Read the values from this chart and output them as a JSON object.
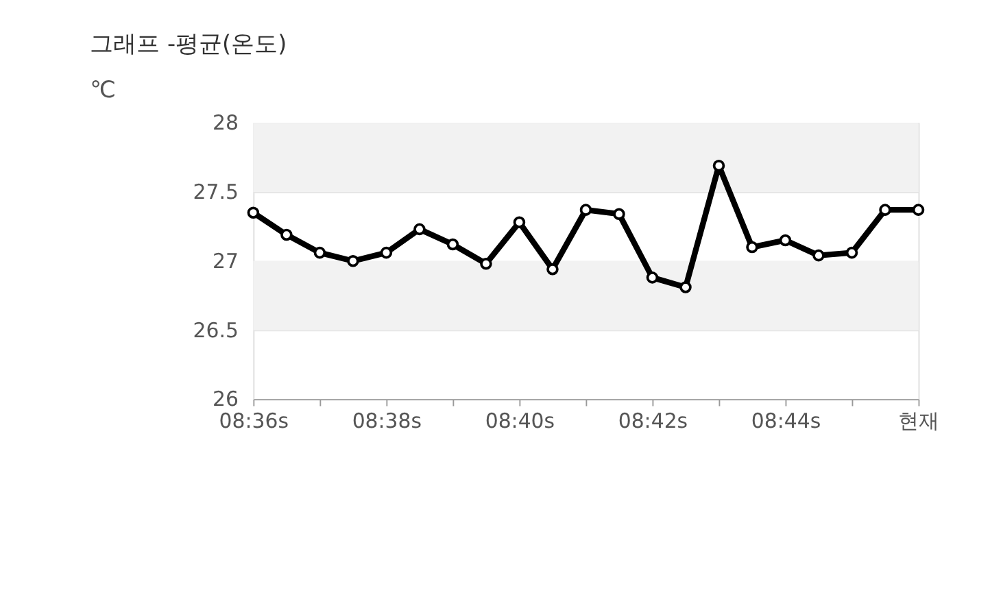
{
  "chart_data": {
    "type": "line",
    "title": "그래프 -평균(온도)",
    "ylabel": "℃",
    "categories": [
      "08:36s",
      null,
      null,
      null,
      "08:38s",
      null,
      null,
      null,
      "08:40s",
      null,
      null,
      null,
      "08:42s",
      null,
      null,
      null,
      "08:44s",
      null,
      null,
      null,
      "현재"
    ],
    "series": [
      {
        "color": "#000000",
        "values": [
          27.35,
          27.19,
          27.06,
          27.0,
          27.06,
          27.23,
          27.12,
          26.98,
          27.28,
          26.94,
          27.37,
          27.34,
          26.88,
          26.81,
          27.69,
          27.1,
          27.15,
          27.04,
          27.06,
          27.37,
          27.37
        ]
      }
    ],
    "ylim": [
      26,
      28
    ],
    "yticks": [
      26,
      26.5,
      27,
      27.5,
      28
    ],
    "bands": [
      {
        "axis": "y",
        "from": 27.5,
        "to": 28,
        "color": "#f2f2f2"
      },
      {
        "axis": "y",
        "from": 26.5,
        "to": 27,
        "color": "#f2f2f2"
      }
    ],
    "grid": "y",
    "marker": "circle",
    "line_style": "solid"
  }
}
